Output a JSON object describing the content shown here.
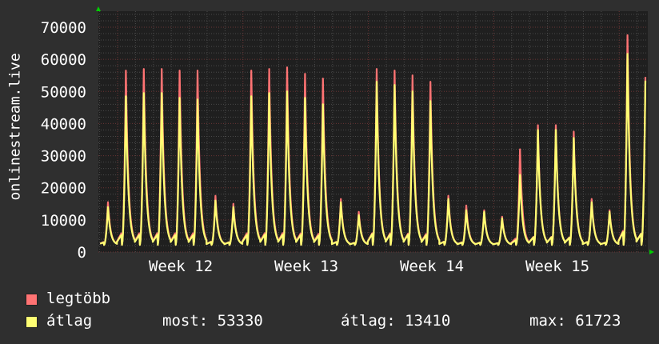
{
  "chart_data": {
    "type": "line",
    "ylabel": "onlinestream.live",
    "ylim": [
      0,
      75000
    ],
    "yticks": [
      "0",
      "10000",
      "20000",
      "30000",
      "40000",
      "50000",
      "60000",
      "70000"
    ],
    "xticks": [
      "Week 12",
      "Week 13",
      "Week 14",
      "Week 15"
    ],
    "grid": true,
    "legend_placement": "bottom",
    "background": "#1f1f1f",
    "series": [
      {
        "name": "legtöbb",
        "color": "#ff7373",
        "daily_peaks": [
          15500,
          56500,
          57000,
          57000,
          56500,
          56500,
          17500,
          15000,
          56500,
          57000,
          57500,
          55500,
          54000,
          16500,
          12500,
          57000,
          56500,
          55000,
          53000,
          17500,
          14500,
          13000,
          11000,
          32000,
          39500,
          39500,
          37500,
          16500,
          13000,
          67500,
          54500
        ]
      },
      {
        "name": "átlag",
        "color": "#ffff73",
        "daily_peaks": [
          14000,
          48500,
          49500,
          49500,
          48000,
          47500,
          16000,
          14000,
          48500,
          49500,
          50000,
          48000,
          46000,
          15500,
          11500,
          53000,
          52000,
          50000,
          47000,
          16500,
          13000,
          12500,
          10500,
          24000,
          38000,
          38000,
          35500,
          15500,
          12500,
          61700,
          53330
        ]
      }
    ]
  },
  "legend": {
    "max_label": "legtöbb",
    "avg_label": "átlag",
    "current": "most: 53330",
    "average": "átlag: 13410",
    "maximum": "max: 61723"
  }
}
